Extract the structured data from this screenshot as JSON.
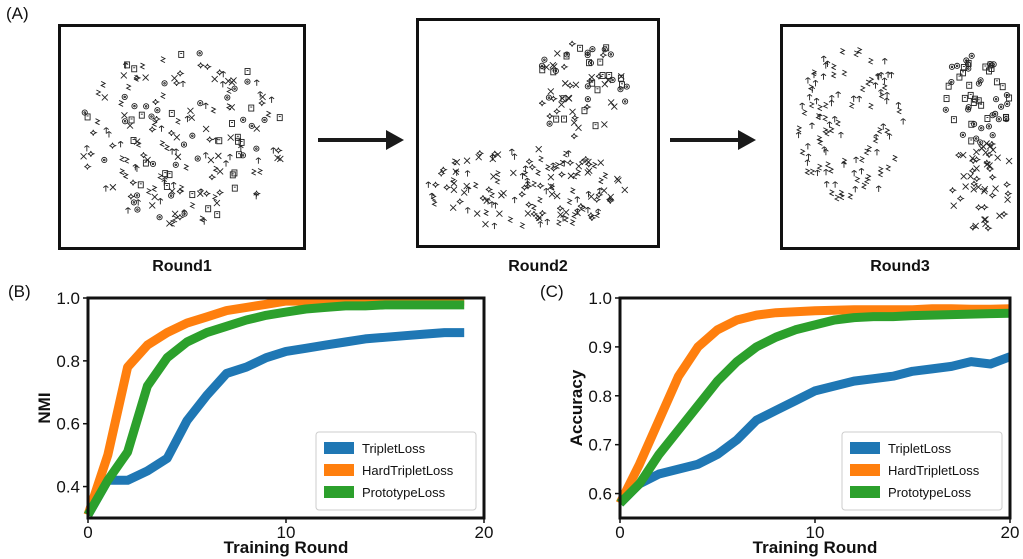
{
  "panels": {
    "a_label": "(A)",
    "b_label": "(B)",
    "c_label": "(C)"
  },
  "rounds": {
    "round1": "Round1",
    "round2": "Round2",
    "round3": "Round3"
  },
  "colors": {
    "triplet": "#1f77b4",
    "hard": "#ff7f0e",
    "proto": "#2ca02c"
  },
  "chart_data": [
    {
      "type": "line",
      "ylabel": "NMI",
      "xlabel": "Training Round",
      "xlim": [
        0,
        20
      ],
      "ylim": [
        0.3,
        1.0
      ],
      "xticks": [
        "0",
        "10",
        "20"
      ],
      "yticks": [
        "0.4",
        "0.6",
        "0.8",
        "1.0"
      ],
      "ytick_values": [
        0.4,
        0.6,
        0.8,
        1.0
      ],
      "xtick_values": [
        0,
        10,
        20
      ],
      "legend_position": "bottom-right",
      "x": [
        0,
        1,
        2,
        3,
        4,
        5,
        6,
        7,
        8,
        9,
        10,
        11,
        12,
        13,
        14,
        15,
        16,
        17,
        18,
        19
      ],
      "series": [
        {
          "name": "TripletLoss",
          "color_key": "triplet",
          "values": [
            0.31,
            0.42,
            0.42,
            0.45,
            0.49,
            0.61,
            0.69,
            0.76,
            0.78,
            0.81,
            0.83,
            0.84,
            0.85,
            0.86,
            0.87,
            0.875,
            0.88,
            0.885,
            0.89,
            0.89
          ]
        },
        {
          "name": "HardTripletLoss",
          "color_key": "hard",
          "values": [
            0.31,
            0.5,
            0.78,
            0.85,
            0.89,
            0.92,
            0.94,
            0.96,
            0.97,
            0.98,
            0.99,
            0.99,
            0.99,
            0.99,
            0.99,
            0.99,
            0.99,
            0.99,
            0.99,
            0.99
          ]
        },
        {
          "name": "PrototypeLoss",
          "color_key": "proto",
          "values": [
            0.31,
            0.42,
            0.51,
            0.72,
            0.81,
            0.86,
            0.89,
            0.91,
            0.93,
            0.945,
            0.955,
            0.965,
            0.97,
            0.975,
            0.975,
            0.978,
            0.978,
            0.978,
            0.978,
            0.978
          ]
        }
      ]
    },
    {
      "type": "line",
      "ylabel": "Accuracy",
      "xlabel": "Training Round",
      "xlim": [
        0,
        20
      ],
      "ylim": [
        0.55,
        1.0
      ],
      "xticks": [
        "0",
        "10",
        "20"
      ],
      "yticks": [
        "0.6",
        "0.7",
        "0.8",
        "0.9",
        "1.0"
      ],
      "ytick_values": [
        0.6,
        0.7,
        0.8,
        0.9,
        1.0
      ],
      "xtick_values": [
        0,
        10,
        20
      ],
      "legend_position": "bottom-right",
      "x": [
        0,
        1,
        2,
        3,
        4,
        5,
        6,
        7,
        8,
        9,
        10,
        11,
        12,
        13,
        14,
        15,
        16,
        17,
        18,
        19,
        20
      ],
      "series": [
        {
          "name": "TripletLoss",
          "color_key": "triplet",
          "values": [
            0.58,
            0.62,
            0.64,
            0.65,
            0.66,
            0.68,
            0.71,
            0.75,
            0.77,
            0.79,
            0.81,
            0.82,
            0.83,
            0.835,
            0.84,
            0.85,
            0.855,
            0.86,
            0.87,
            0.865,
            0.88
          ]
        },
        {
          "name": "HardTripletLoss",
          "color_key": "hard",
          "values": [
            0.58,
            0.66,
            0.75,
            0.84,
            0.9,
            0.935,
            0.955,
            0.965,
            0.97,
            0.972,
            0.974,
            0.975,
            0.976,
            0.976,
            0.976,
            0.976,
            0.978,
            0.978,
            0.977,
            0.977,
            0.978
          ]
        },
        {
          "name": "PrototypeLoss",
          "color_key": "proto",
          "values": [
            0.58,
            0.62,
            0.68,
            0.73,
            0.78,
            0.83,
            0.87,
            0.9,
            0.92,
            0.935,
            0.945,
            0.955,
            0.96,
            0.962,
            0.962,
            0.964,
            0.965,
            0.966,
            0.967,
            0.968,
            0.969
          ]
        }
      ]
    }
  ]
}
